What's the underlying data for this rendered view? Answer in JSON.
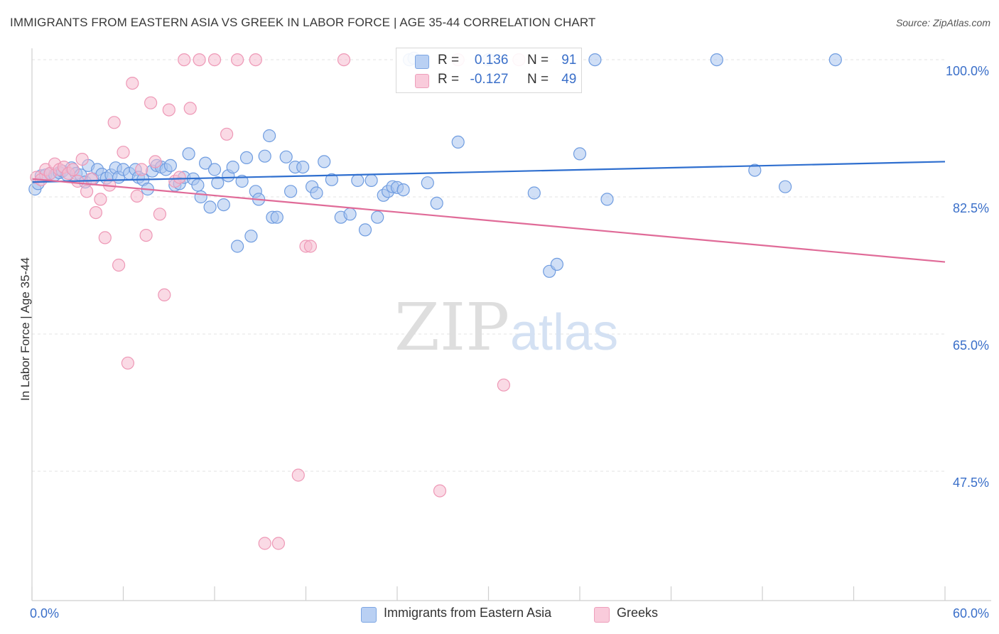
{
  "title": "IMMIGRANTS FROM EASTERN ASIA VS GREEK IN LABOR FORCE | AGE 35-44 CORRELATION CHART",
  "source": "Source: ZipAtlas.com",
  "watermark": {
    "zip": "ZIP",
    "atlas": "atlas"
  },
  "colors": {
    "blue_fill": "#a9c4ef",
    "blue_stroke": "#6f9ce0",
    "blue_line": "#2f6fcf",
    "pink_fill": "#f6bcd0",
    "pink_stroke": "#ee98b6",
    "pink_line": "#e06b98",
    "tick_text": "#3a6fc9",
    "grid": "#e3e3e3"
  },
  "legend_top": {
    "r_label": "R =",
    "n_label": "N =",
    "series1": {
      "r": "0.136",
      "n": "91"
    },
    "series2": {
      "r": "-0.127",
      "n": "49"
    }
  },
  "legend_bottom": {
    "series1": "Immigrants from Eastern Asia",
    "series2": "Greeks"
  },
  "chart_data": {
    "type": "scatter",
    "ylabel": "In Labor Force | Age 35-44",
    "xlim": [
      0,
      60
    ],
    "ylim": [
      31,
      102
    ],
    "x_tick_labels": [
      {
        "value": 0,
        "label": "0.0%"
      },
      {
        "value": 60,
        "label": "60.0%"
      }
    ],
    "y_tick_labels": [
      {
        "value": 100,
        "label": "100.0%"
      },
      {
        "value": 82.5,
        "label": "82.5%"
      },
      {
        "value": 65,
        "label": "65.0%"
      },
      {
        "value": 47.5,
        "label": "47.5%"
      }
    ],
    "grid": true,
    "series": [
      {
        "name": "Immigrants from Eastern Asia",
        "color": "#a9c4ef",
        "trend": {
          "x": [
            0,
            60
          ],
          "y": [
            84.4,
            87.0
          ]
        },
        "points": [
          [
            0.2,
            83.5
          ],
          [
            0.4,
            84.2
          ],
          [
            0.6,
            85.2
          ],
          [
            0.9,
            85.3
          ],
          [
            1.2,
            85.5
          ],
          [
            1.5,
            85.3
          ],
          [
            1.8,
            85.6
          ],
          [
            2.0,
            85.8
          ],
          [
            2.3,
            85.3
          ],
          [
            2.6,
            86.2
          ],
          [
            2.9,
            85.5
          ],
          [
            3.2,
            85.3
          ],
          [
            3.5,
            84.4
          ],
          [
            3.7,
            86.5
          ],
          [
            4.0,
            84.8
          ],
          [
            4.3,
            86.0
          ],
          [
            4.6,
            85.4
          ],
          [
            4.9,
            84.9
          ],
          [
            5.2,
            85.3
          ],
          [
            5.5,
            86.2
          ],
          [
            5.7,
            85.0
          ],
          [
            6.0,
            86.0
          ],
          [
            6.4,
            85.5
          ],
          [
            6.8,
            86.0
          ],
          [
            7.0,
            85.0
          ],
          [
            7.3,
            84.7
          ],
          [
            7.6,
            83.5
          ],
          [
            7.9,
            85.8
          ],
          [
            8.2,
            86.5
          ],
          [
            8.5,
            86.3
          ],
          [
            8.8,
            86.0
          ],
          [
            9.1,
            86.5
          ],
          [
            9.4,
            84.0
          ],
          [
            9.7,
            84.2
          ],
          [
            10.0,
            85.0
          ],
          [
            10.3,
            88.0
          ],
          [
            10.6,
            84.8
          ],
          [
            10.9,
            84.0
          ],
          [
            11.1,
            82.5
          ],
          [
            11.4,
            86.8
          ],
          [
            11.7,
            81.2
          ],
          [
            12.0,
            86.0
          ],
          [
            12.2,
            84.3
          ],
          [
            12.6,
            81.5
          ],
          [
            12.9,
            85.2
          ],
          [
            13.2,
            86.3
          ],
          [
            13.5,
            76.2
          ],
          [
            13.8,
            84.5
          ],
          [
            14.1,
            87.5
          ],
          [
            14.4,
            77.5
          ],
          [
            14.7,
            83.2
          ],
          [
            14.9,
            82.2
          ],
          [
            15.3,
            87.7
          ],
          [
            15.6,
            90.3
          ],
          [
            15.8,
            79.9
          ],
          [
            16.1,
            79.9
          ],
          [
            16.7,
            87.6
          ],
          [
            17.0,
            83.2
          ],
          [
            17.3,
            86.3
          ],
          [
            17.8,
            86.3
          ],
          [
            18.4,
            83.8
          ],
          [
            18.7,
            83.0
          ],
          [
            19.2,
            87.0
          ],
          [
            19.7,
            84.7
          ],
          [
            20.3,
            79.9
          ],
          [
            20.9,
            80.3
          ],
          [
            21.4,
            84.6
          ],
          [
            21.9,
            78.3
          ],
          [
            22.3,
            84.6
          ],
          [
            22.7,
            79.9
          ],
          [
            23.1,
            82.7
          ],
          [
            23.4,
            83.2
          ],
          [
            23.7,
            83.8
          ],
          [
            24.0,
            83.7
          ],
          [
            24.4,
            83.4
          ],
          [
            24.8,
            100.0
          ],
          [
            25.1,
            100.2
          ],
          [
            26.0,
            84.3
          ],
          [
            26.6,
            81.7
          ],
          [
            28.0,
            89.5
          ],
          [
            30.0,
            100.0
          ],
          [
            33.0,
            83.0
          ],
          [
            34.0,
            73.0
          ],
          [
            34.5,
            73.9
          ],
          [
            36.0,
            88.0
          ],
          [
            37.0,
            100.0
          ],
          [
            37.8,
            82.2
          ],
          [
            45.0,
            100.0
          ],
          [
            47.5,
            85.9
          ],
          [
            49.5,
            83.8
          ],
          [
            52.8,
            100.0
          ]
        ]
      },
      {
        "name": "Greeks",
        "color": "#f6bcd0",
        "trend": {
          "x": [
            0,
            60
          ],
          "y": [
            84.8,
            74.2
          ]
        },
        "points": [
          [
            0.3,
            85.0
          ],
          [
            0.6,
            84.7
          ],
          [
            0.9,
            86.0
          ],
          [
            1.2,
            85.5
          ],
          [
            1.5,
            86.7
          ],
          [
            1.8,
            86.0
          ],
          [
            2.1,
            86.3
          ],
          [
            2.4,
            85.5
          ],
          [
            2.7,
            86.0
          ],
          [
            3.0,
            84.5
          ],
          [
            3.3,
            87.3
          ],
          [
            3.6,
            83.2
          ],
          [
            3.9,
            84.8
          ],
          [
            4.2,
            80.5
          ],
          [
            4.5,
            82.2
          ],
          [
            4.8,
            77.3
          ],
          [
            5.1,
            84.0
          ],
          [
            5.4,
            92.0
          ],
          [
            5.7,
            73.8
          ],
          [
            6.0,
            88.2
          ],
          [
            6.3,
            61.3
          ],
          [
            6.6,
            97.0
          ],
          [
            6.9,
            82.6
          ],
          [
            7.2,
            86.0
          ],
          [
            7.5,
            77.6
          ],
          [
            7.8,
            94.5
          ],
          [
            8.1,
            87.0
          ],
          [
            8.4,
            80.3
          ],
          [
            8.7,
            70.0
          ],
          [
            9.0,
            93.6
          ],
          [
            9.4,
            84.5
          ],
          [
            9.7,
            85.0
          ],
          [
            10.0,
            100.0
          ],
          [
            10.4,
            93.8
          ],
          [
            11.0,
            100.0
          ],
          [
            12.0,
            100.0
          ],
          [
            12.8,
            90.5
          ],
          [
            13.5,
            100.0
          ],
          [
            14.7,
            100.0
          ],
          [
            15.3,
            38.3
          ],
          [
            16.2,
            38.3
          ],
          [
            17.5,
            47.0
          ],
          [
            18.0,
            76.2
          ],
          [
            18.3,
            76.2
          ],
          [
            20.5,
            100.0
          ],
          [
            26.8,
            45.0
          ],
          [
            28.0,
            100.0
          ],
          [
            31.0,
            58.5
          ],
          [
            32.0,
            100.0
          ]
        ]
      }
    ]
  }
}
